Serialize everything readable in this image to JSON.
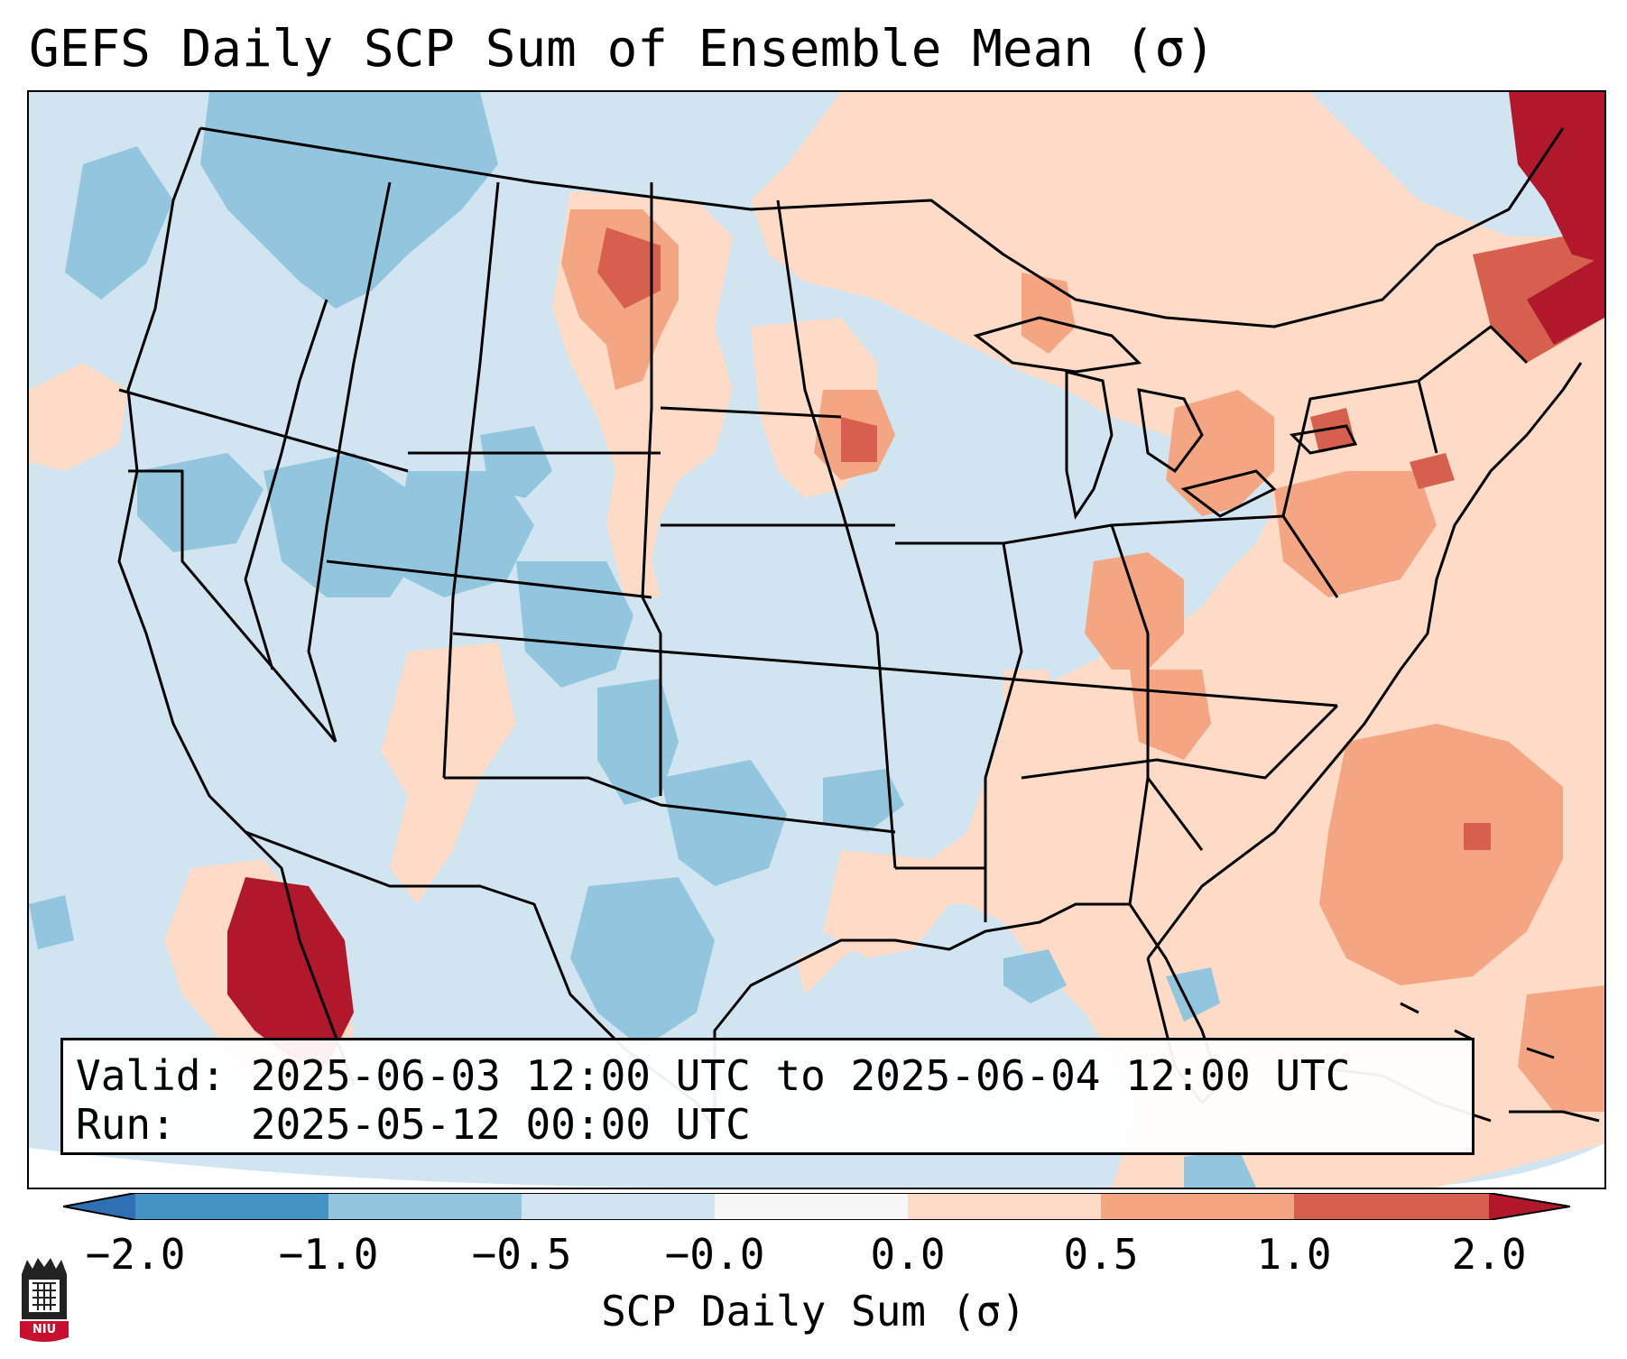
{
  "title": "GEFS Daily SCP Sum of Ensemble Mean (σ)",
  "info": {
    "valid_label": "Valid:",
    "valid_text": "2025-06-03 12:00 UTC to 2025-06-04 12:00 UTC",
    "run_label": "Run:",
    "run_text": "2025-05-12 00:00 UTC"
  },
  "colorbar": {
    "label": "SCP Daily Sum (σ)",
    "ticks": [
      "−2.0",
      "−1.0",
      "−0.5",
      "−0.0",
      "0.0",
      "0.5",
      "1.0",
      "2.0"
    ],
    "colors": {
      "below_min": "#2f6fb4",
      "n2_n1": "#4393c3",
      "n1_n05": "#92c5de",
      "n05_0": "#d1e5f0",
      "zero": "#f7f7f7",
      "0_05": "#fddbc7",
      "05_1": "#f4a582",
      "1_2": "#d6604d",
      "above_max": "#b2182b"
    }
  },
  "logo": {
    "text": "NIU",
    "color": "#c8102e"
  }
}
